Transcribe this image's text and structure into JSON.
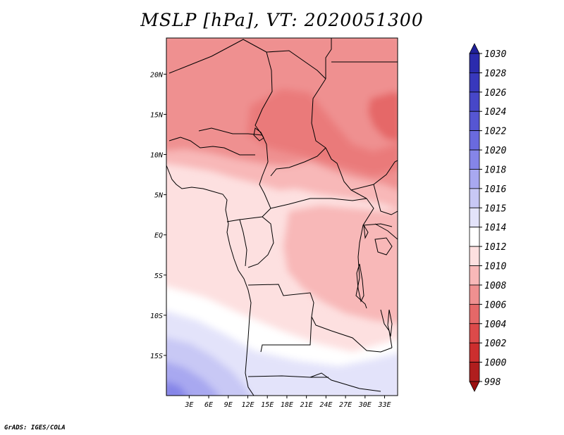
{
  "title": "MSLP [hPa], VT: 2020051300",
  "footer": "GrADS: IGES/COLA",
  "map": {
    "lon_range": [
      -0.5,
      35.0
    ],
    "lat_range": [
      -20.0,
      24.5
    ],
    "lon_ticks": [
      "3E",
      "6E",
      "9E",
      "12E",
      "15E",
      "18E",
      "21E",
      "24E",
      "27E",
      "30E",
      "33E"
    ],
    "lon_tick_values": [
      3,
      6,
      9,
      12,
      15,
      18,
      21,
      24,
      27,
      30,
      33
    ],
    "lat_ticks": [
      "20N",
      "15N",
      "10N",
      "5N",
      "EQ",
      "5S",
      "10S",
      "15S"
    ],
    "lat_tick_values": [
      20,
      15,
      10,
      5,
      0,
      -5,
      -10,
      -15
    ]
  },
  "colorbar": {
    "levels": [
      "1030",
      "1028",
      "1026",
      "1024",
      "1022",
      "1020",
      "1018",
      "1016",
      "1015",
      "1014",
      "1012",
      "1010",
      "1008",
      "1006",
      "1004",
      "1002",
      "1000",
      "998"
    ],
    "colors": [
      "#20209a",
      "#2b2bad",
      "#3838bc",
      "#4747c8",
      "#5656d2",
      "#6a6ade",
      "#8585e8",
      "#a8a8f0",
      "#c8c8f5",
      "#e3e3fa",
      "#ffffff",
      "#fde0e0",
      "#f8b8b8",
      "#ef9090",
      "#e56868",
      "#dc4a4a",
      "#cc2e2e",
      "#b01e1e",
      "#9c1010"
    ]
  }
}
